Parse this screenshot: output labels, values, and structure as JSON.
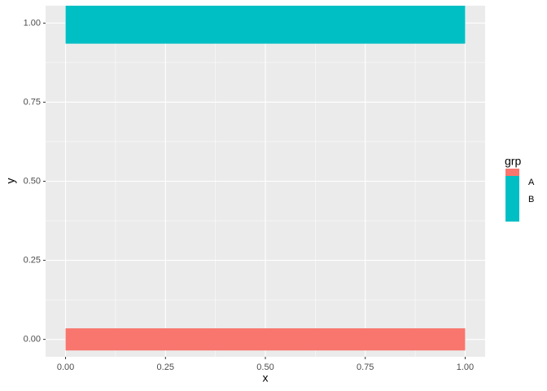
{
  "chart_data": {
    "type": "rect",
    "xlabel": "x",
    "ylabel": "y",
    "legend_title": "grp",
    "xlim": [
      -0.05,
      1.05
    ],
    "ylim": [
      -0.055,
      1.055
    ],
    "xticks": [
      {
        "value": 0,
        "label": "0.00"
      },
      0.25,
      {
        "value": 0.5,
        "label": "0.50"
      },
      0.75,
      {
        "value": 1,
        "label": "1.00"
      }
    ],
    "yticks": [
      {
        "value": 0,
        "label": "0.00"
      },
      0.25,
      {
        "value": 0.5,
        "label": "0.50"
      },
      0.75,
      {
        "value": 1,
        "label": "1.00"
      }
    ],
    "grid": true,
    "minor_grid": true,
    "legend_position": "right",
    "series": [
      {
        "name": "A",
        "color": "#F8766D",
        "xmin": 0,
        "xmax": 1,
        "ymin": -0.035,
        "ymax": 0.035
      },
      {
        "name": "B",
        "color": "#00BFC4",
        "xmin": 0,
        "xmax": 1,
        "ymin": 0.935,
        "ymax": 1.055
      }
    ]
  }
}
